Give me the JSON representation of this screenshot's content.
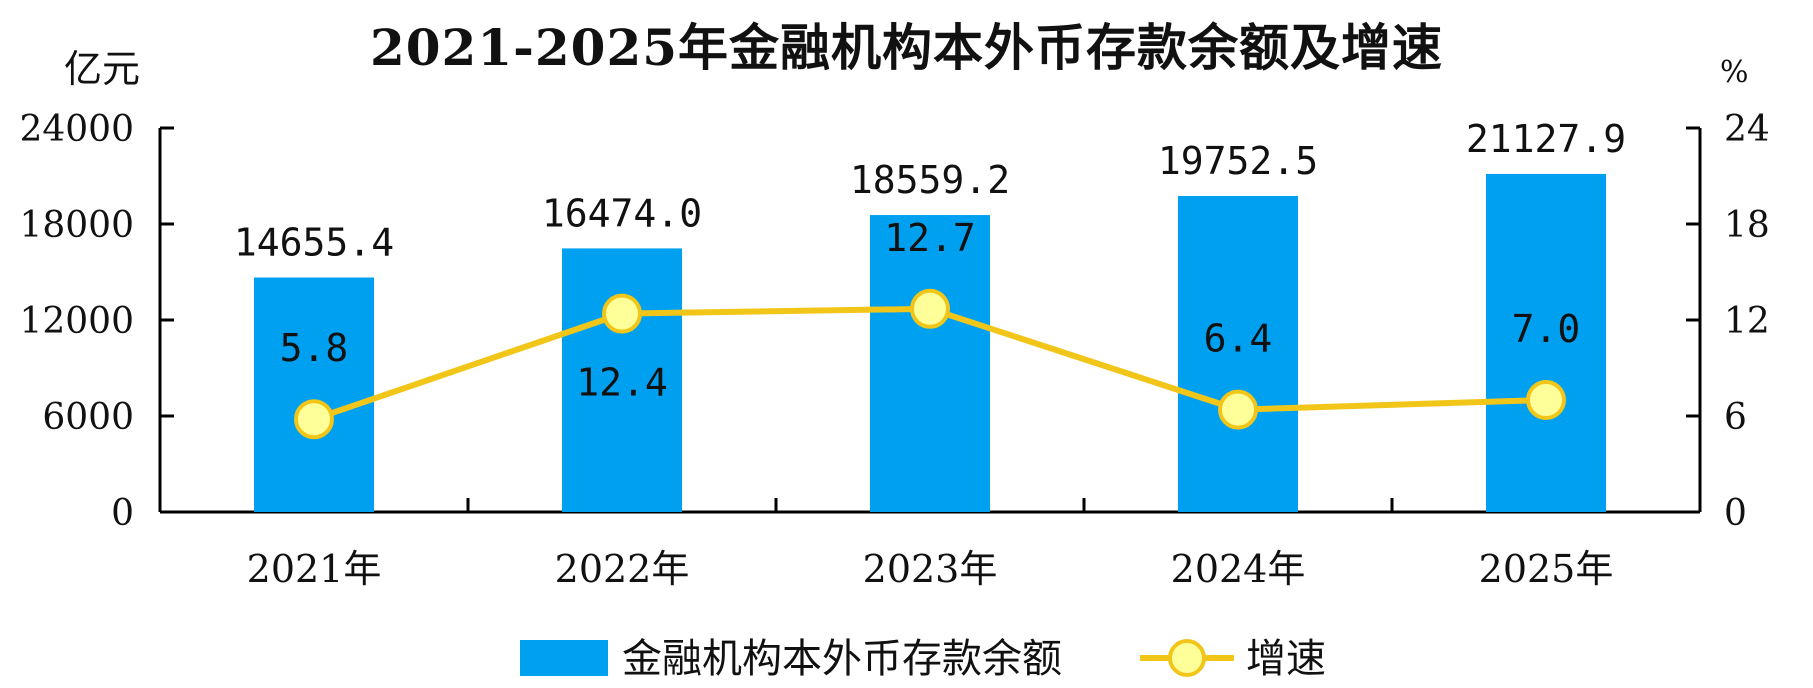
{
  "chart_data": {
    "type": "bar",
    "title": "2021-2025年金融机构本外币存款余额及增速",
    "left_unit": "亿元",
    "right_unit": "%",
    "categories": [
      "2021年",
      "2022年",
      "2023年",
      "2024年",
      "2025年"
    ],
    "series": [
      {
        "name": "金融机构本外币存款余额",
        "type": "bar",
        "axis": "left",
        "values": [
          14655.4,
          16474.0,
          18559.2,
          19752.5,
          21127.9
        ],
        "labels": [
          "14655.4",
          "16474.0",
          "18559.2",
          "19752.5",
          "21127.9"
        ],
        "color": "#00A0F0"
      },
      {
        "name": "增速",
        "type": "line",
        "axis": "right",
        "values": [
          5.8,
          12.4,
          12.7,
          6.4,
          7.0
        ],
        "labels": [
          "5.8",
          "12.4",
          "12.7",
          "6.4",
          "7.0"
        ],
        "color": "#F2C619",
        "marker_fill": "#FFFF99"
      }
    ],
    "left_axis": {
      "min": 0,
      "max": 24000,
      "ticks": [
        "0",
        "6000",
        "12000",
        "18000",
        "24000"
      ]
    },
    "right_axis": {
      "min": 0,
      "max": 24,
      "ticks": [
        "0",
        "6",
        "12",
        "18",
        "24"
      ]
    },
    "grid": false,
    "legend_position": "bottom"
  }
}
